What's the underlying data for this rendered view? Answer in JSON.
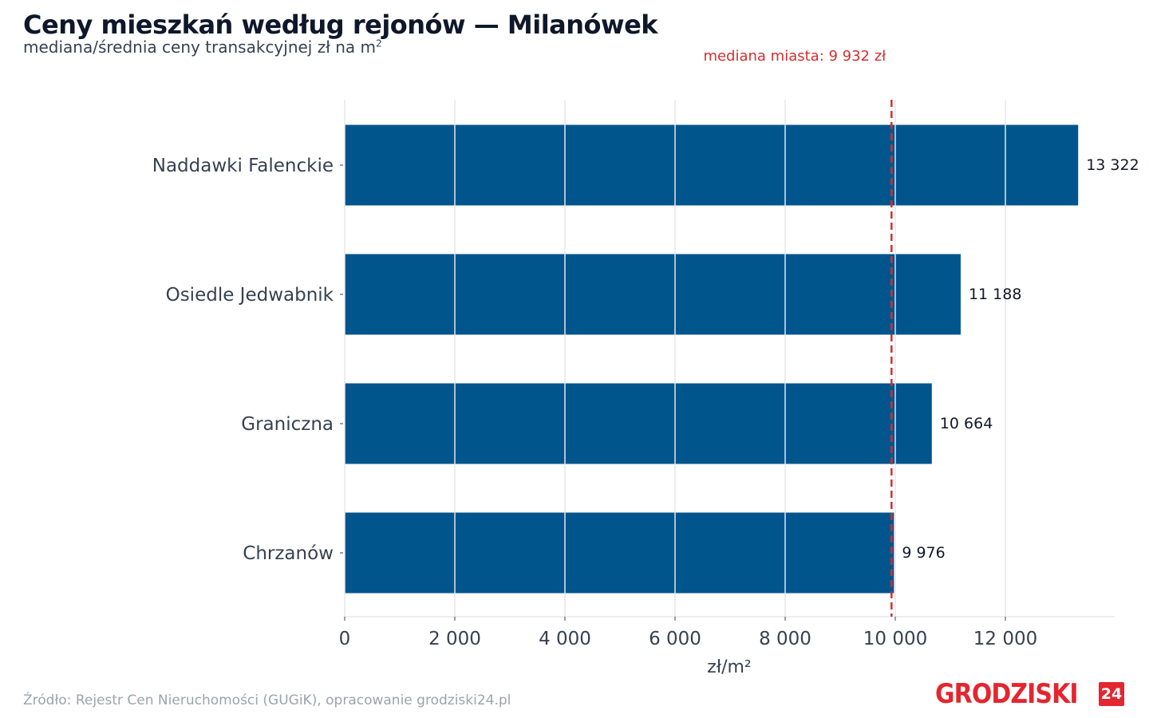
{
  "header": {
    "title": "Ceny mieszkań według rejonów — Milanówek",
    "subtitle": "mediana/średnia ceny transakcyjnej zł na m",
    "subtitle_sup": "2"
  },
  "footer": {
    "source": "Źródło: Rejestr Cen Nieruchomości (GUGiK), opracowanie grodziski24.pl"
  },
  "logo": {
    "text": "GRODZISKI",
    "badge": "24"
  },
  "chart_data": {
    "type": "bar",
    "orientation": "horizontal",
    "categories": [
      "Naddawki Falenckie",
      "Osiedle Jedwabnik",
      "Graniczna",
      "Chrzanów"
    ],
    "values": [
      13322,
      11188,
      10664,
      9976
    ],
    "value_labels": [
      "13 322",
      "11 188",
      "10 664",
      "9 976"
    ],
    "xlabel": "zł/m²",
    "xlim": [
      0,
      14000
    ],
    "xticks": [
      0,
      2000,
      4000,
      6000,
      8000,
      10000,
      12000
    ],
    "xtick_labels": [
      "0",
      "2 000",
      "4 000",
      "6 000",
      "8 000",
      "10 000",
      "12 000"
    ],
    "grid": true,
    "reference_line": {
      "value": 9932,
      "label": "mediana miasta: 9 932 zł"
    },
    "colors": {
      "bar": "#00558c",
      "reference": "#d32f2f",
      "grid": "#e5e7eb"
    }
  }
}
